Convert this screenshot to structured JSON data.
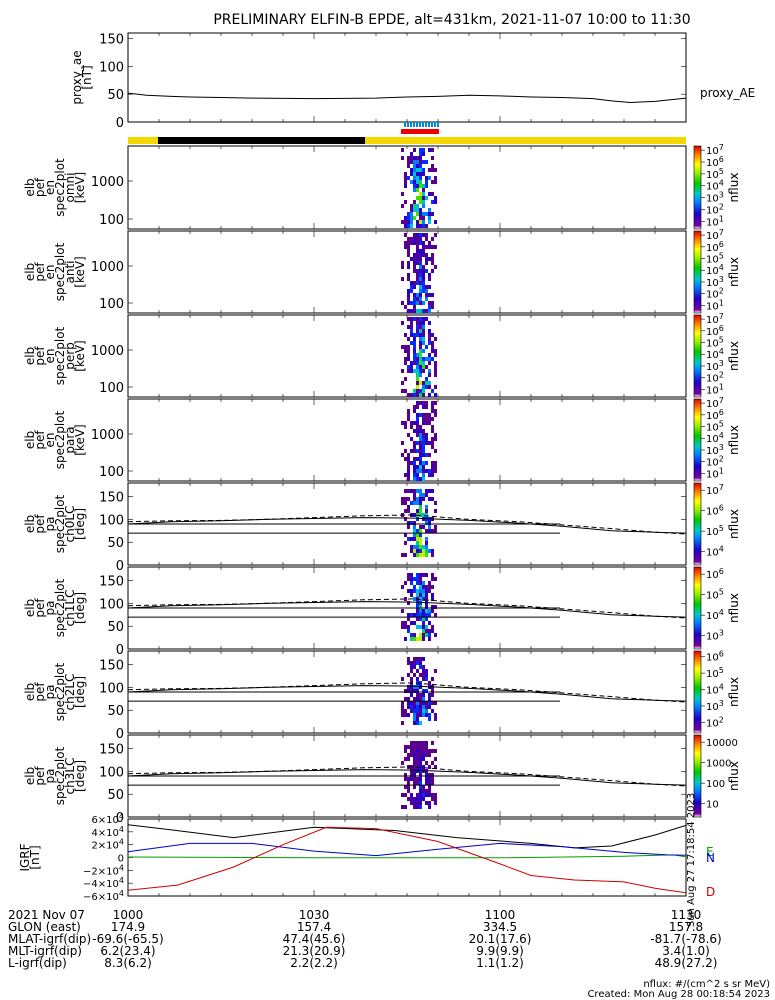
{
  "chart_data": {
    "type": "spectrogram",
    "title": "PRELIMINARY ELFIN-B EPDE, alt=431km, 2021-11-07 10:00 to 11:30",
    "x_range": [
      "10:00",
      "11:30"
    ],
    "panels": [
      {
        "id": "proxy_ae",
        "ylabel": [
          "proxy_ae",
          "[nT]"
        ],
        "ylim": [
          0,
          150
        ],
        "yticks": [
          "150",
          "100",
          "50",
          "0"
        ],
        "legend": "proxy_AE",
        "series": [
          {
            "name": "proxy_AE",
            "x": [
              "10:00",
              "10:03",
              "10:07",
              "10:10",
              "10:15",
              "10:20",
              "10:30",
              "10:40",
              "10:45",
              "10:50",
              "10:55",
              "11:00",
              "11:05",
              "11:10",
              "11:15",
              "11:18",
              "11:21",
              "11:25",
              "11:30"
            ],
            "y": [
              52,
              48,
              46,
              45,
              44,
              43,
              42,
              43,
              45,
              46,
              48,
              47,
              45,
              44,
              42,
              38,
              35,
              37,
              43
            ]
          }
        ]
      },
      {
        "id": "en_omni",
        "ylabel": [
          "elb",
          "pef",
          "en",
          "spec2plot",
          "omni",
          "[keV]"
        ],
        "yticks": [
          "1000",
          "100"
        ],
        "colorbar": {
          "label": "nflux",
          "ticks": [
            "10^7",
            "10^6",
            "10^5",
            "10^4",
            "10^3",
            "10^2",
            "10^1"
          ]
        }
      },
      {
        "id": "en_anti",
        "ylabel": [
          "elb",
          "pef",
          "en",
          "spec2plot",
          "anti",
          "[keV]"
        ],
        "yticks": [
          "1000",
          "100"
        ],
        "colorbar": {
          "label": "nflux",
          "ticks": [
            "10^7",
            "10^6",
            "10^5",
            "10^4",
            "10^3",
            "10^2",
            "10^1"
          ]
        }
      },
      {
        "id": "en_perp",
        "ylabel": [
          "elb",
          "pef",
          "en",
          "spec2plot",
          "perp",
          "[keV]"
        ],
        "yticks": [
          "1000",
          "100"
        ],
        "colorbar": {
          "label": "nflux",
          "ticks": [
            "10^7",
            "10^6",
            "10^5",
            "10^4",
            "10^3",
            "10^2",
            "10^1"
          ]
        }
      },
      {
        "id": "en_para",
        "ylabel": [
          "elb",
          "pef",
          "en",
          "spec2plot",
          "para",
          "[keV]"
        ],
        "yticks": [
          "1000",
          "100"
        ],
        "colorbar": {
          "label": "nflux",
          "ticks": [
            "10^7",
            "10^6",
            "10^5",
            "10^4",
            "10^3",
            "10^2",
            "10^1"
          ]
        }
      },
      {
        "id": "pa_ch0",
        "ylabel": [
          "elb",
          "pef",
          "pa",
          "spec2plot",
          "ch0LC",
          "[deg]"
        ],
        "ylim": [
          0,
          180
        ],
        "yticks": [
          "150",
          "100",
          "50",
          "0"
        ],
        "colorbar": {
          "label": "nflux",
          "ticks": [
            "10^7",
            "10^6",
            "10^5",
            "10^4"
          ]
        }
      },
      {
        "id": "pa_ch1",
        "ylabel": [
          "elb",
          "pef",
          "pa",
          "spec2plot",
          "ch1LC",
          "[deg]"
        ],
        "ylim": [
          0,
          180
        ],
        "yticks": [
          "150",
          "100",
          "50",
          "0"
        ],
        "colorbar": {
          "label": "nflux",
          "ticks": [
            "10^6",
            "10^5",
            "10^4",
            "10^3"
          ]
        }
      },
      {
        "id": "pa_ch2",
        "ylabel": [
          "elb",
          "pef",
          "pa",
          "spec2plot",
          "ch2LC",
          "[deg]"
        ],
        "ylim": [
          0,
          180
        ],
        "yticks": [
          "150",
          "100",
          "50",
          "0"
        ],
        "colorbar": {
          "label": "nflux",
          "ticks": [
            "10^6",
            "10^5",
            "10^4",
            "10^3",
            "10^2"
          ]
        }
      },
      {
        "id": "pa_ch3",
        "ylabel": [
          "elb",
          "pef",
          "pa",
          "spec2plot",
          "ch3LC",
          "[deg]"
        ],
        "ylim": [
          0,
          180
        ],
        "yticks": [
          "150",
          "100",
          "50",
          "0"
        ],
        "colorbar": {
          "label": "nflux",
          "ticks": [
            "10000",
            "1000",
            "100",
            "10"
          ]
        }
      },
      {
        "id": "igrf",
        "ylabel": [
          "IGRF",
          "[nT]"
        ],
        "ylim": [
          -60000,
          60000
        ],
        "yticks": [
          "6×10^4",
          "4×10^4",
          "2×10^4",
          "0",
          "−2×10^4",
          "−4×10^4",
          "−6×10^4"
        ],
        "series": [
          {
            "name": "magnitude",
            "color": "#000000",
            "x": [
              "10:00",
              "10:07",
              "10:17",
              "10:30",
              "10:43",
              "10:53",
              "11:05",
              "11:12",
              "11:18",
              "11:25",
              "11:30"
            ],
            "y": [
              51000,
              43000,
              31000,
              47000,
              42000,
              31000,
              22000,
              15000,
              18000,
              35000,
              50000
            ]
          },
          {
            "name": "E",
            "color": "#00a000",
            "x": [
              "10:00",
              "10:30",
              "11:00",
              "11:20",
              "11:28",
              "11:30"
            ],
            "y": [
              800,
              -300,
              -500,
              2000,
              4000,
              1000
            ]
          },
          {
            "name": "N",
            "color": "#0000cc",
            "x": [
              "10:00",
              "10:10",
              "10:20",
              "10:30",
              "10:40",
              "10:50",
              "11:00",
              "11:10",
              "11:20",
              "11:27",
              "11:30"
            ],
            "y": [
              9000,
              22000,
              22000,
              10000,
              3000,
              13000,
              22000,
              17000,
              8000,
              4000,
              3500
            ]
          },
          {
            "name": "D",
            "color": "#cc0000",
            "x": [
              "10:00",
              "10:08",
              "10:17",
              "10:25",
              "10:32",
              "10:40",
              "10:50",
              "11:00",
              "11:05",
              "11:12",
              "11:20",
              "11:25",
              "11:30"
            ],
            "y": [
              -51000,
              -43000,
              -15000,
              20000,
              47000,
              45000,
              25000,
              -10000,
              -28000,
              -35000,
              -38000,
              -48000,
              -55000
            ]
          }
        ],
        "legend": [
          "E",
          "N",
          "D"
        ]
      }
    ],
    "xaxis_footer": {
      "rows": [
        {
          "label": "2021 Nov 07",
          "values": [
            "1000",
            "1030",
            "1100",
            "1130"
          ]
        },
        {
          "label": "GLON (east)",
          "values": [
            "174.9",
            "157.4",
            "334.5",
            "157.8"
          ]
        },
        {
          "label": "MLAT-igrf(dip)",
          "values": [
            "-69.6(-65.5)",
            "47.4(45.6)",
            "20.1(17.6)",
            "-81.7(-78.6)"
          ]
        },
        {
          "label": "MLT-igrf(dip)",
          "values": [
            "6.2(23.4)",
            "21.3(20.9)",
            "9.9(9.9)",
            "3.4(1.0)"
          ]
        },
        {
          "label": "L-igrf(dip)",
          "values": [
            "8.3(6.2)",
            "2.2(2.2)",
            "1.1(1.2)",
            "48.9(27.2)"
          ]
        }
      ]
    },
    "status_bar": {
      "note": "yellow=sunlit, black=shadow, red/blue=science zone"
    },
    "footer_notes": [
      "nflux: #/(cm^2 s sr MeV)",
      "Created: Mon Aug 28 00:18:54 2023"
    ],
    "side_stamp": "Sun Aug 27 17:18:54 2023"
  },
  "colors": {
    "sunlit": "#f5d800",
    "shadow": "#000000",
    "zone_red": "#ee0000",
    "zone_blue": "#0088dd"
  }
}
